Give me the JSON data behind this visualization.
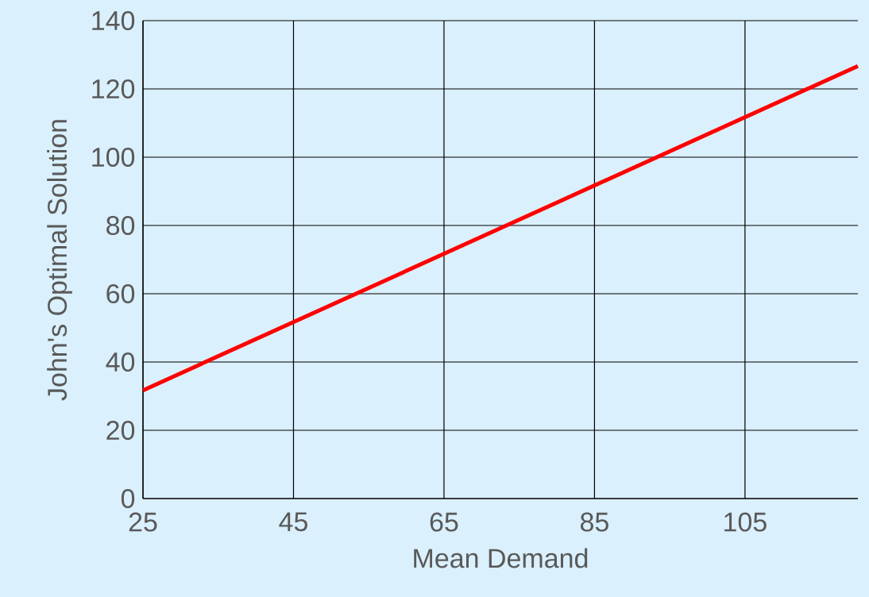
{
  "chart_data": {
    "type": "line",
    "xlabel": "Mean Demand",
    "ylabel": "John's Optimal Solution",
    "x": [
      25,
      120
    ],
    "series": [
      {
        "color": "#ff0000",
        "values": [
          31.7,
          126.7
        ]
      }
    ],
    "xlim": [
      25,
      120
    ],
    "xticks": [
      25,
      45,
      65,
      85,
      105
    ],
    "ylim": [
      0,
      140
    ],
    "yticks": [
      0,
      20,
      40,
      60,
      80,
      100,
      120,
      140
    ],
    "grid": true,
    "marker": "none",
    "line_style": "solid"
  }
}
